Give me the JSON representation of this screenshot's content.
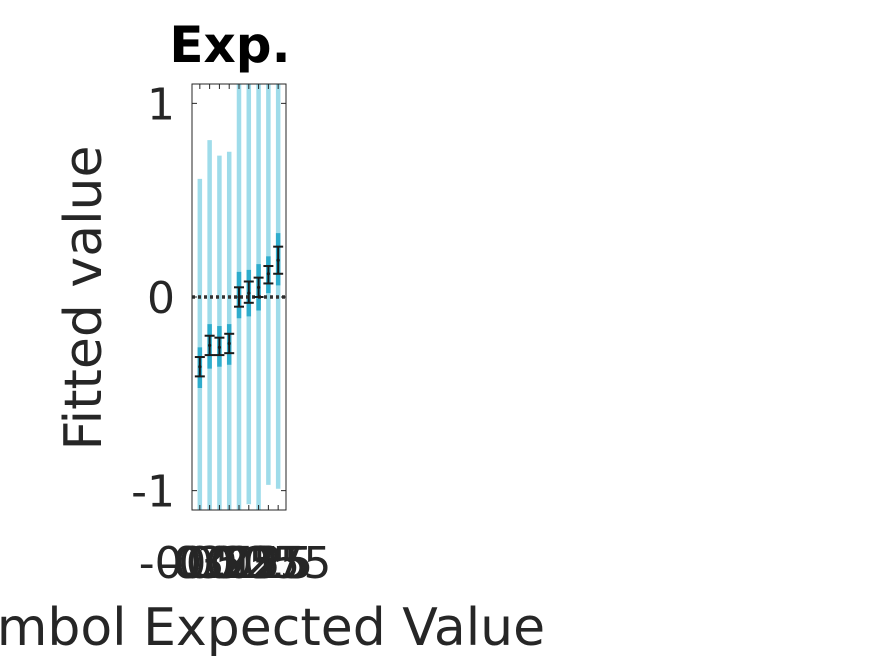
{
  "chart_data": {
    "type": "errorbar",
    "title": "Exp.",
    "xlabel": "Symbol Expected Value",
    "ylabel": "Fitted value",
    "ylim": [
      -1.1,
      1.1
    ],
    "yticks": [
      -1,
      0,
      1
    ],
    "ytick_labels": [
      "-1",
      "0",
      "1"
    ],
    "xlim": [
      -0.6,
      0.6
    ],
    "xtick_labels": [
      "-0.5",
      "-0.375",
      "-0.25",
      "-0.125",
      "0",
      "0.125",
      "0.25",
      "0.375",
      "0.5"
    ],
    "zero_line": true,
    "grid": false,
    "colors": {
      "light_interval": "#9fdcea",
      "dark_interval": "#2eaccc",
      "point": "#1a1a1a",
      "zero_line": "#333333"
    },
    "points": [
      {
        "x": -0.5,
        "y": -0.36,
        "err_lo": -0.41,
        "err_hi": -0.31,
        "mid_lo": -0.47,
        "mid_hi": -0.26,
        "wide_lo": -1.1,
        "wide_hi": 0.61
      },
      {
        "x": -0.375,
        "y": -0.25,
        "err_lo": -0.3,
        "err_hi": -0.2,
        "mid_lo": -0.37,
        "mid_hi": -0.14,
        "wide_lo": -1.1,
        "wide_hi": 0.81
      },
      {
        "x": -0.25,
        "y": -0.26,
        "err_lo": -0.3,
        "err_hi": -0.21,
        "mid_lo": -0.36,
        "mid_hi": -0.15,
        "wide_lo": -1.1,
        "wide_hi": 0.73
      },
      {
        "x": -0.125,
        "y": -0.24,
        "err_lo": -0.29,
        "err_hi": -0.19,
        "mid_lo": -0.35,
        "mid_hi": -0.14,
        "wide_lo": -1.1,
        "wide_hi": 0.75
      },
      {
        "x": 0,
        "y": 0,
        "err_lo": -0.05,
        "err_hi": 0.05,
        "mid_lo": -0.11,
        "mid_hi": 0.13,
        "wide_lo": -1.1,
        "wide_hi": 1.1
      },
      {
        "x": 0.125,
        "y": 0.02,
        "err_lo": -0.03,
        "err_hi": 0.08,
        "mid_lo": -0.1,
        "mid_hi": 0.14,
        "wide_lo": -1.07,
        "wide_hi": 1.1
      },
      {
        "x": 0.25,
        "y": 0.05,
        "err_lo": 0,
        "err_hi": 0.1,
        "mid_lo": -0.07,
        "mid_hi": 0.17,
        "wide_lo": -1.1,
        "wide_hi": 1.1
      },
      {
        "x": 0.375,
        "y": 0.12,
        "err_lo": 0.07,
        "err_hi": 0.16,
        "mid_lo": 0.02,
        "mid_hi": 0.21,
        "wide_lo": -0.97,
        "wide_hi": 1.1
      },
      {
        "x": 0.5,
        "y": 0.19,
        "err_lo": 0.12,
        "err_hi": 0.26,
        "mid_lo": 0.06,
        "mid_hi": 0.33,
        "wide_lo": -0.99,
        "wide_hi": 1.1
      }
    ]
  }
}
